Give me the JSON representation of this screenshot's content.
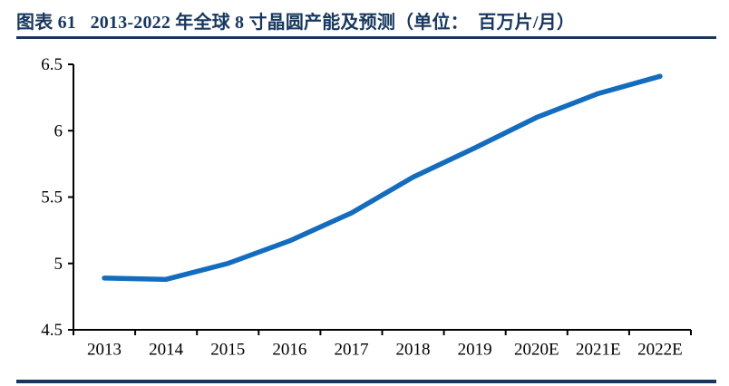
{
  "header": {
    "title": "图表 61   2013-2022 年全球 8 寸晶圆产能及预测（单位：  百万片/月）",
    "title_color": "#17375E",
    "rule_color": "#17375E"
  },
  "chart_data": {
    "type": "line",
    "title": "2013-2022 年全球 8 寸晶圆产能及预测",
    "unit": "百万片/月",
    "categories": [
      "2013",
      "2014",
      "2015",
      "2016",
      "2017",
      "2018",
      "2019",
      "2020E",
      "2021E",
      "2022E"
    ],
    "series": [
      {
        "name": "全球8寸晶圆产能",
        "values": [
          4.89,
          4.88,
          5.0,
          5.17,
          5.38,
          5.65,
          5.87,
          6.1,
          6.28,
          6.41
        ]
      }
    ],
    "ylim": [
      4.5,
      6.5
    ],
    "yticks": [
      6.5,
      6,
      5.5,
      5,
      4.5
    ],
    "ytick_labels": [
      "6.5",
      "6",
      "5.5",
      "5",
      "4.5"
    ],
    "xlabel": "",
    "ylabel": "",
    "grid": false,
    "legend_position": "none",
    "line_color": "#146CBE",
    "axis_color": "#000000",
    "tick_label_size": 19
  }
}
